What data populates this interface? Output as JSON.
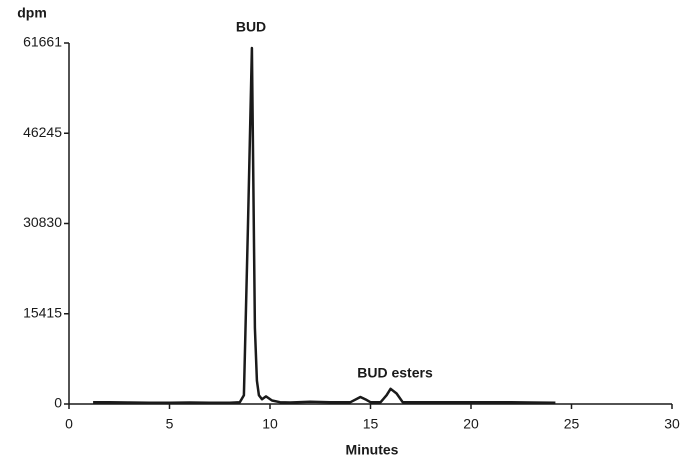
{
  "chart_data": {
    "type": "line",
    "y_label": "dpm",
    "x_label": "Minutes",
    "annotations": [
      "BUD",
      "BUD esters"
    ],
    "x": [
      1.2,
      2,
      3,
      4,
      5,
      6,
      7,
      8,
      8.5,
      8.7,
      8.9,
      9.1,
      9.25,
      9.35,
      9.45,
      9.6,
      9.8,
      10.1,
      10.5,
      11,
      12,
      13,
      14,
      14.5,
      14.8,
      15,
      15.5,
      15.8,
      16,
      16.3,
      16.6,
      17,
      18,
      19,
      20,
      21,
      22,
      23,
      24.2
    ],
    "series": [
      {
        "color": "#1a1a1a",
        "values": [
          300,
          300,
          250,
          200,
          200,
          250,
          200,
          200,
          300,
          1500,
          30000,
          60800,
          13000,
          4000,
          1500,
          800,
          1300,
          600,
          300,
          250,
          400,
          300,
          300,
          1200,
          700,
          300,
          300,
          1500,
          2600,
          1800,
          300,
          300,
          300,
          300,
          300,
          300,
          300,
          250,
          200
        ]
      }
    ],
    "xlim": [
      0,
      30
    ],
    "xticks": [
      0,
      5,
      10,
      15,
      20,
      25,
      30
    ],
    "ylim": [
      0,
      61661
    ],
    "yticks": [
      0,
      15415,
      30830,
      46245,
      61661
    ]
  }
}
